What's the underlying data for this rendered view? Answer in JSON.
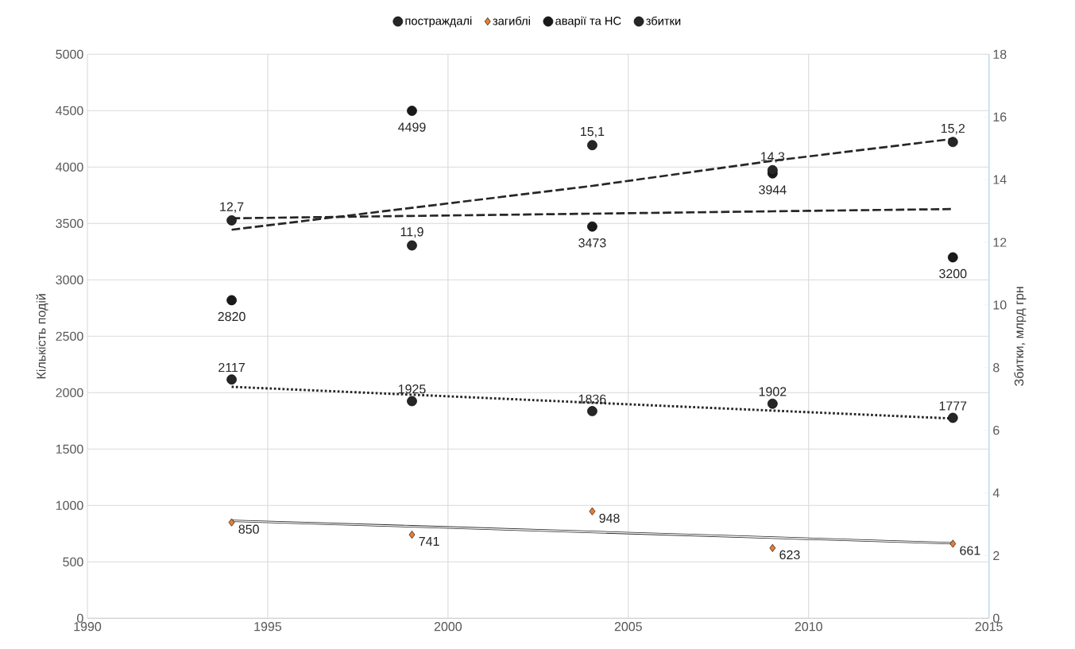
{
  "chart_data": {
    "type": "scatter",
    "ylabel": "Кількість подій",
    "y2label": "Збитки, млрд грн",
    "x": [
      1994,
      1999,
      2004,
      2009,
      2014
    ],
    "series": [
      {
        "name": "постраждалі",
        "color": "#262626",
        "marker": "circle",
        "values": [
          2117,
          1925,
          1836,
          1902,
          1777
        ],
        "value_labels": [
          "2117",
          "1925",
          "1836",
          "1902",
          "1777"
        ]
      },
      {
        "name": "загиблі",
        "color": "#ed7d31",
        "marker": "diamond",
        "values": [
          850,
          741,
          948,
          623,
          661
        ],
        "value_labels": [
          "850",
          "741",
          "948",
          "623",
          "661"
        ]
      },
      {
        "name": "аварії та НС",
        "color": "#1a1a1a",
        "marker": "circle",
        "values": [
          2820,
          4499,
          3473,
          3944,
          3200
        ],
        "value_labels": [
          "2820",
          "4499",
          "3473",
          "3944",
          "3200"
        ]
      },
      {
        "name": "збитки",
        "axis": "y2",
        "color": "#262626",
        "marker": "circle",
        "values": [
          12.7,
          11.9,
          15.1,
          14.3,
          15.2
        ],
        "value_labels": [
          "12,7",
          "11,9",
          "15,1",
          "14,3",
          "15,2"
        ]
      },
      {
        "type": "line",
        "color": "#262626",
        "line_style": "dotted",
        "marker": "none",
        "values": [
          2052,
          1982,
          1911,
          1841,
          1771
        ]
      },
      {
        "type": "line",
        "color": "#262626",
        "line_style": "solid",
        "marker": "none",
        "values": [
          864,
          815,
          765,
          715,
          665
        ]
      },
      {
        "type": "line",
        "color": "#262626",
        "line_style": "dashed",
        "marker": "none",
        "values": [
          3546,
          3567,
          3587,
          3608,
          3628
        ]
      },
      {
        "type": "line",
        "axis": "y2",
        "color": "#262626",
        "line_style": "dashed",
        "marker": "none",
        "values": [
          12.4,
          13.1,
          13.8,
          14.6,
          15.3
        ]
      }
    ],
    "xlim": [
      1990,
      2015
    ],
    "xticks": [
      1990,
      1995,
      2000,
      2005,
      2010,
      2015
    ],
    "ylim": [
      0,
      5000
    ],
    "yticks": [
      0,
      500,
      1000,
      1500,
      2000,
      2500,
      3000,
      3500,
      4000,
      4500,
      5000
    ],
    "y2lim": [
      0,
      18
    ],
    "y2ticks": [
      0,
      2,
      4,
      6,
      8,
      10,
      12,
      14,
      16,
      18
    ],
    "grid": true,
    "legend": "top"
  }
}
